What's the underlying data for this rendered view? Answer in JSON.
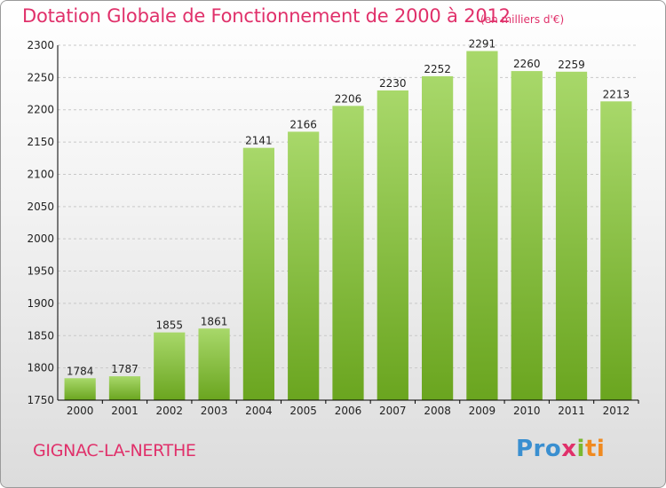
{
  "chart_data": {
    "type": "bar",
    "title": "Dotation Globale de Fonctionnement de 2000 à 2012",
    "unit_note": "(en milliers d'€)",
    "categories": [
      "2000",
      "2001",
      "2002",
      "2003",
      "2004",
      "2005",
      "2006",
      "2007",
      "2008",
      "2009",
      "2010",
      "2011",
      "2012"
    ],
    "values": [
      1784,
      1787,
      1855,
      1861,
      2141,
      2166,
      2206,
      2230,
      2252,
      2291,
      2260,
      2259,
      2213
    ],
    "ylim": [
      1750,
      2300
    ],
    "yticks": [
      1750,
      1800,
      1850,
      1900,
      1950,
      2000,
      2050,
      2100,
      2150,
      2200,
      2250,
      2300
    ],
    "grid": true,
    "bar_color_light": "#a8d86a",
    "bar_color_dark": "#6aa51f",
    "axis_color": "#000000"
  },
  "footer": {
    "commune": "GIGNAC-LA-NERTHE",
    "logo_parts": [
      "Pro",
      "x",
      "i",
      "ti"
    ]
  }
}
